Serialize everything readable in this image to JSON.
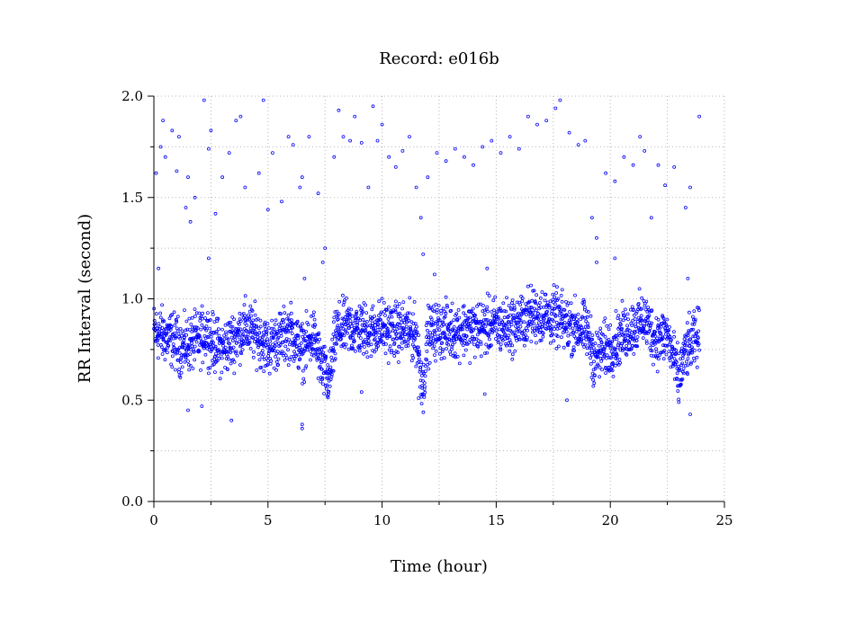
{
  "chart_data": {
    "type": "scatter",
    "title": "Record:  e016b",
    "xlabel": "Time (hour)",
    "ylabel": "RR Interval (second)",
    "xlim": [
      0,
      25
    ],
    "ylim": [
      0,
      2.0
    ],
    "x_ticks": [
      "0",
      "5",
      "10",
      "15",
      "20",
      "25"
    ],
    "x_tick_values": [
      0,
      5,
      10,
      15,
      20,
      25
    ],
    "x_minor_tick_values": [
      2.5,
      7.5,
      12.5,
      17.5,
      22.5
    ],
    "y_ticks": [
      "0.0",
      "0.5",
      "1.0",
      "1.5",
      "2.0"
    ],
    "y_tick_values": [
      0,
      0.5,
      1.0,
      1.5,
      2.0
    ],
    "y_minor_tick_values": [
      0.25,
      0.75,
      1.25,
      1.75
    ],
    "grid": true,
    "marker": "open-circle",
    "color": "#0000ff",
    "series": [
      {
        "band_profile": [
          {
            "x": 0.0,
            "y": 0.84
          },
          {
            "x": 0.4,
            "y": 0.82
          },
          {
            "x": 0.8,
            "y": 0.8
          },
          {
            "x": 1.2,
            "y": 0.76
          },
          {
            "x": 1.6,
            "y": 0.78
          },
          {
            "x": 2.0,
            "y": 0.8
          },
          {
            "x": 2.3,
            "y": 0.84
          },
          {
            "x": 2.6,
            "y": 0.78
          },
          {
            "x": 3.0,
            "y": 0.75
          },
          {
            "x": 3.5,
            "y": 0.8
          },
          {
            "x": 4.0,
            "y": 0.86
          },
          {
            "x": 4.5,
            "y": 0.82
          },
          {
            "x": 5.0,
            "y": 0.76
          },
          {
            "x": 5.5,
            "y": 0.8
          },
          {
            "x": 6.0,
            "y": 0.84
          },
          {
            "x": 6.5,
            "y": 0.74
          },
          {
            "x": 7.0,
            "y": 0.82
          },
          {
            "x": 7.4,
            "y": 0.64
          },
          {
            "x": 7.7,
            "y": 0.6
          },
          {
            "x": 8.0,
            "y": 0.84
          },
          {
            "x": 8.5,
            "y": 0.86
          },
          {
            "x": 9.0,
            "y": 0.85
          },
          {
            "x": 9.5,
            "y": 0.84
          },
          {
            "x": 10.0,
            "y": 0.86
          },
          {
            "x": 10.5,
            "y": 0.84
          },
          {
            "x": 11.0,
            "y": 0.85
          },
          {
            "x": 11.5,
            "y": 0.82
          },
          {
            "x": 11.8,
            "y": 0.55
          },
          {
            "x": 12.0,
            "y": 0.82
          },
          {
            "x": 12.5,
            "y": 0.85
          },
          {
            "x": 13.0,
            "y": 0.84
          },
          {
            "x": 13.5,
            "y": 0.85
          },
          {
            "x": 14.0,
            "y": 0.85
          },
          {
            "x": 14.5,
            "y": 0.86
          },
          {
            "x": 15.0,
            "y": 0.87
          },
          {
            "x": 15.5,
            "y": 0.86
          },
          {
            "x": 16.0,
            "y": 0.88
          },
          {
            "x": 16.5,
            "y": 0.92
          },
          {
            "x": 17.0,
            "y": 0.92
          },
          {
            "x": 17.5,
            "y": 0.91
          },
          {
            "x": 18.0,
            "y": 0.88
          },
          {
            "x": 18.5,
            "y": 0.86
          },
          {
            "x": 19.0,
            "y": 0.84
          },
          {
            "x": 19.3,
            "y": 0.7
          },
          {
            "x": 19.6,
            "y": 0.74
          },
          {
            "x": 20.0,
            "y": 0.76
          },
          {
            "x": 20.5,
            "y": 0.82
          },
          {
            "x": 21.0,
            "y": 0.86
          },
          {
            "x": 21.5,
            "y": 0.9
          },
          {
            "x": 22.0,
            "y": 0.8
          },
          {
            "x": 22.5,
            "y": 0.82
          },
          {
            "x": 23.0,
            "y": 0.6
          },
          {
            "x": 23.3,
            "y": 0.74
          },
          {
            "x": 23.6,
            "y": 0.78
          },
          {
            "x": 23.9,
            "y": 0.82
          }
        ],
        "band_half_width": 0.11,
        "outliers": [
          {
            "x": 0.1,
            "y": 1.62
          },
          {
            "x": 0.3,
            "y": 1.75
          },
          {
            "x": 0.4,
            "y": 1.88
          },
          {
            "x": 0.5,
            "y": 1.7
          },
          {
            "x": 0.8,
            "y": 1.83
          },
          {
            "x": 1.0,
            "y": 1.63
          },
          {
            "x": 1.1,
            "y": 1.8
          },
          {
            "x": 1.4,
            "y": 1.45
          },
          {
            "x": 1.5,
            "y": 1.6
          },
          {
            "x": 1.6,
            "y": 1.38
          },
          {
            "x": 1.8,
            "y": 1.5
          },
          {
            "x": 2.2,
            "y": 1.98
          },
          {
            "x": 2.4,
            "y": 1.74
          },
          {
            "x": 2.5,
            "y": 1.83
          },
          {
            "x": 2.7,
            "y": 1.42
          },
          {
            "x": 3.0,
            "y": 1.6
          },
          {
            "x": 3.3,
            "y": 1.72
          },
          {
            "x": 3.6,
            "y": 1.88
          },
          {
            "x": 3.8,
            "y": 1.9
          },
          {
            "x": 4.0,
            "y": 1.55
          },
          {
            "x": 4.6,
            "y": 1.62
          },
          {
            "x": 4.8,
            "y": 1.98
          },
          {
            "x": 5.0,
            "y": 1.44
          },
          {
            "x": 5.2,
            "y": 1.72
          },
          {
            "x": 5.6,
            "y": 1.48
          },
          {
            "x": 5.9,
            "y": 1.8
          },
          {
            "x": 6.1,
            "y": 1.76
          },
          {
            "x": 6.4,
            "y": 1.55
          },
          {
            "x": 6.5,
            "y": 1.6
          },
          {
            "x": 6.8,
            "y": 1.8
          },
          {
            "x": 7.2,
            "y": 1.52
          },
          {
            "x": 7.5,
            "y": 1.25
          },
          {
            "x": 7.9,
            "y": 1.7
          },
          {
            "x": 8.1,
            "y": 1.93
          },
          {
            "x": 8.3,
            "y": 1.8
          },
          {
            "x": 8.6,
            "y": 1.78
          },
          {
            "x": 8.8,
            "y": 1.9
          },
          {
            "x": 9.1,
            "y": 1.77
          },
          {
            "x": 9.4,
            "y": 1.55
          },
          {
            "x": 9.6,
            "y": 1.95
          },
          {
            "x": 9.8,
            "y": 1.78
          },
          {
            "x": 10.0,
            "y": 1.86
          },
          {
            "x": 10.3,
            "y": 1.7
          },
          {
            "x": 10.6,
            "y": 1.65
          },
          {
            "x": 10.9,
            "y": 1.73
          },
          {
            "x": 11.2,
            "y": 1.8
          },
          {
            "x": 11.5,
            "y": 1.55
          },
          {
            "x": 11.7,
            "y": 1.4
          },
          {
            "x": 12.0,
            "y": 1.6
          },
          {
            "x": 12.4,
            "y": 1.72
          },
          {
            "x": 12.8,
            "y": 1.68
          },
          {
            "x": 13.2,
            "y": 1.74
          },
          {
            "x": 13.6,
            "y": 1.7
          },
          {
            "x": 14.0,
            "y": 1.66
          },
          {
            "x": 14.4,
            "y": 1.75
          },
          {
            "x": 14.8,
            "y": 1.78
          },
          {
            "x": 15.2,
            "y": 1.72
          },
          {
            "x": 15.6,
            "y": 1.8
          },
          {
            "x": 16.0,
            "y": 1.74
          },
          {
            "x": 16.4,
            "y": 1.9
          },
          {
            "x": 16.8,
            "y": 1.86
          },
          {
            "x": 17.2,
            "y": 1.88
          },
          {
            "x": 17.6,
            "y": 1.94
          },
          {
            "x": 17.8,
            "y": 1.98
          },
          {
            "x": 18.2,
            "y": 1.82
          },
          {
            "x": 18.6,
            "y": 1.76
          },
          {
            "x": 18.9,
            "y": 1.78
          },
          {
            "x": 19.2,
            "y": 1.4
          },
          {
            "x": 19.4,
            "y": 1.3
          },
          {
            "x": 19.8,
            "y": 1.62
          },
          {
            "x": 20.2,
            "y": 1.58
          },
          {
            "x": 20.6,
            "y": 1.7
          },
          {
            "x": 21.0,
            "y": 1.66
          },
          {
            "x": 21.3,
            "y": 1.8
          },
          {
            "x": 21.5,
            "y": 1.73
          },
          {
            "x": 21.8,
            "y": 1.4
          },
          {
            "x": 22.1,
            "y": 1.66
          },
          {
            "x": 22.4,
            "y": 1.56
          },
          {
            "x": 22.8,
            "y": 1.65
          },
          {
            "x": 23.3,
            "y": 1.45
          },
          {
            "x": 23.5,
            "y": 1.55
          },
          {
            "x": 23.9,
            "y": 1.9
          },
          {
            "x": 1.5,
            "y": 0.45
          },
          {
            "x": 2.1,
            "y": 0.47
          },
          {
            "x": 3.4,
            "y": 0.4
          },
          {
            "x": 6.5,
            "y": 0.38
          },
          {
            "x": 6.5,
            "y": 0.36
          },
          {
            "x": 7.6,
            "y": 0.52
          },
          {
            "x": 9.1,
            "y": 0.54
          },
          {
            "x": 11.6,
            "y": 0.51
          },
          {
            "x": 14.5,
            "y": 0.53
          },
          {
            "x": 18.1,
            "y": 0.5
          },
          {
            "x": 23.0,
            "y": 0.49
          },
          {
            "x": 23.5,
            "y": 0.43
          },
          {
            "x": 0.2,
            "y": 1.15
          },
          {
            "x": 2.4,
            "y": 1.2
          },
          {
            "x": 6.6,
            "y": 1.1
          },
          {
            "x": 7.4,
            "y": 1.18
          },
          {
            "x": 11.8,
            "y": 1.22
          },
          {
            "x": 12.3,
            "y": 1.12
          },
          {
            "x": 14.6,
            "y": 1.15
          },
          {
            "x": 19.4,
            "y": 1.18
          },
          {
            "x": 20.2,
            "y": 1.2
          },
          {
            "x": 23.4,
            "y": 1.1
          }
        ]
      }
    ]
  }
}
